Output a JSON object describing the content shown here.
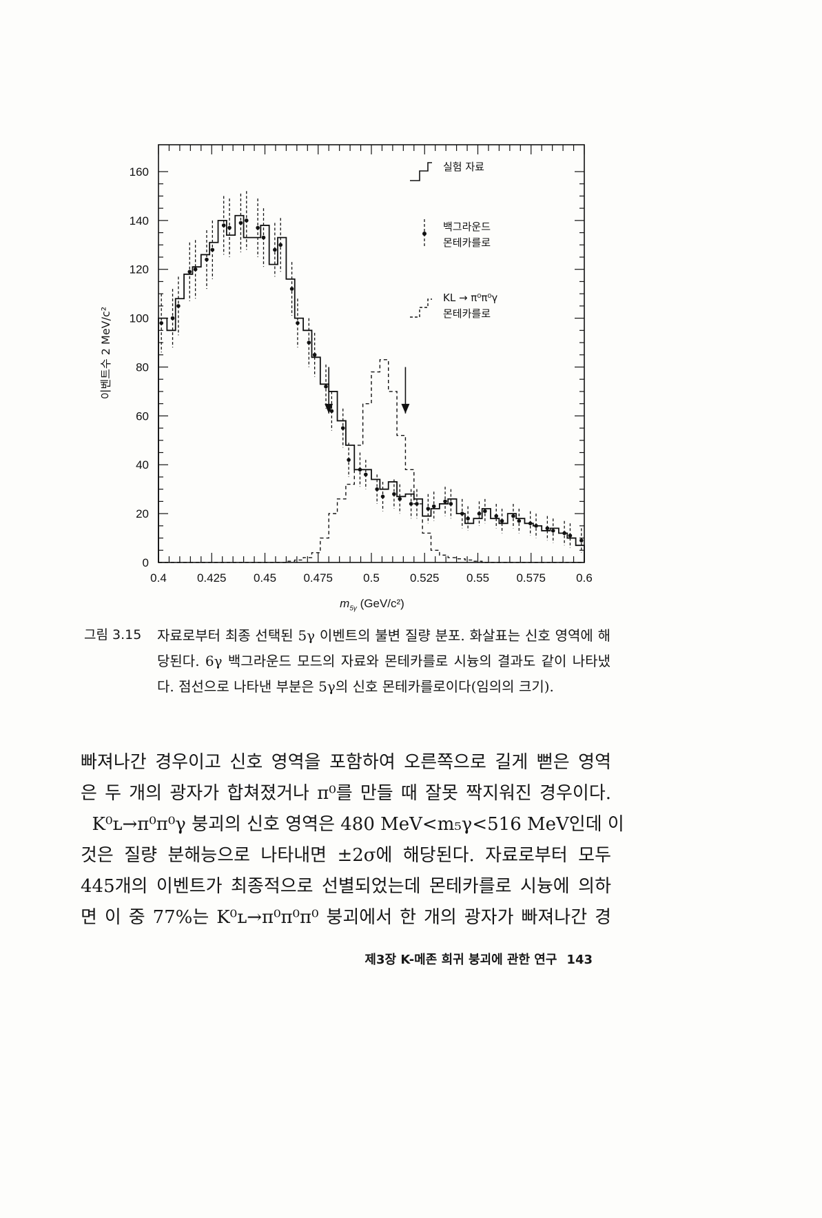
{
  "chart_data": {
    "type": "bar",
    "title": "",
    "xlabel": "m_5γ (GeV/c²)",
    "xlabel_main": "m",
    "xlabel_sub": "5γ",
    "xlabel_unit": " (GeV/c²)",
    "ylabel": "이벤트수 2 MeV/c²",
    "xlim": [
      0.4,
      0.6
    ],
    "ylim": [
      0,
      170
    ],
    "xticks": [
      "0.4",
      "0.425",
      "0.45",
      "0.475",
      "0.5",
      "0.525",
      "0.55",
      "0.575",
      "0.6"
    ],
    "yticks": [
      "0",
      "20",
      "40",
      "60",
      "80",
      "100",
      "120",
      "140",
      "160"
    ],
    "x": [
      0.4,
      0.404,
      0.408,
      0.412,
      0.416,
      0.42,
      0.424,
      0.428,
      0.432,
      0.436,
      0.44,
      0.444,
      0.448,
      0.452,
      0.456,
      0.46,
      0.464,
      0.468,
      0.472,
      0.476,
      0.48,
      0.484,
      0.488,
      0.492,
      0.496,
      0.5,
      0.504,
      0.508,
      0.512,
      0.516,
      0.52,
      0.524,
      0.528,
      0.532,
      0.536,
      0.54,
      0.544,
      0.548,
      0.552,
      0.556,
      0.56,
      0.564,
      0.568,
      0.572,
      0.576,
      0.58,
      0.584,
      0.588,
      0.592,
      0.596
    ],
    "series": [
      {
        "name": "실험 자료",
        "style": "histogram",
        "values": [
          100,
          95,
          108,
          118,
          121,
          126,
          131,
          140,
          134,
          142,
          133,
          133,
          138,
          122,
          133,
          116,
          100,
          95,
          84,
          73,
          70,
          58,
          48,
          38,
          38,
          34,
          30,
          33,
          27,
          28,
          26,
          19,
          22,
          24,
          26,
          20,
          16,
          18,
          22,
          18,
          16,
          20,
          18,
          16,
          15,
          13,
          14,
          12,
          10,
          7
        ]
      },
      {
        "name": "백그라운드 몬테카를로",
        "style": "points-with-dashed-errors",
        "values": [
          98,
          100,
          105,
          119,
          120,
          124,
          128,
          138,
          137,
          139,
          140,
          137,
          133,
          128,
          130,
          112,
          98,
          90,
          85,
          72,
          62,
          55,
          42,
          38,
          36,
          30,
          27,
          28,
          26,
          24,
          24,
          22,
          23,
          25,
          24,
          20,
          18,
          20,
          21,
          19,
          17,
          19,
          17,
          16,
          15,
          14,
          13,
          12,
          11,
          9
        ],
        "errors": [
          12,
          12,
          12,
          12,
          12,
          12,
          12,
          12,
          12,
          12,
          12,
          12,
          12,
          11,
          11,
          11,
          10,
          10,
          9,
          9,
          8,
          8,
          7,
          7,
          6,
          6,
          6,
          6,
          6,
          6,
          6,
          6,
          6,
          6,
          6,
          6,
          5,
          5,
          5,
          5,
          5,
          5,
          5,
          5,
          5,
          5,
          5,
          5,
          5,
          5
        ]
      },
      {
        "name": "KL → π⁰π⁰γ 몬테카를로",
        "style": "dashed-histogram",
        "values": [
          0,
          0,
          0,
          0,
          0,
          0,
          0,
          0,
          0,
          0,
          0,
          0,
          0,
          0,
          0,
          0.5,
          1,
          2,
          4,
          10,
          20,
          26,
          32,
          48,
          65,
          78,
          83,
          70,
          52,
          38,
          24,
          12,
          5,
          3,
          2,
          1.5,
          1,
          0.5,
          0,
          0,
          0,
          0,
          0,
          0,
          0,
          0,
          0,
          0,
          0,
          0
        ]
      }
    ],
    "annotations": [
      {
        "type": "arrow-down",
        "x": 0.48,
        "from": 80,
        "to": 61
      },
      {
        "type": "arrow-down",
        "x": 0.516,
        "from": 80,
        "to": 61
      }
    ],
    "legend": {
      "placement": "top-right",
      "entries": [
        "실험 자료",
        "백그라운드",
        "몬테카를로",
        "KL → π⁰π⁰γ",
        "몬테카를로"
      ]
    }
  },
  "caption": {
    "number": "그림 3.15",
    "text": "자료로부터 최종 선택된 5γ 이벤트의 불변 질량 분포. 화살표는 신호 영역에 해당된다. 6γ 백그라운드 모드의 자료와 몬테카를로 시늉의 결과도 같이 나타냈다. 점선으로 나타낸 부분은 5γ의 신호 몬테카를로이다(임의의 크기)."
  },
  "body": {
    "lines": [
      "빠져나간 경우이고 신호 영역을 포함하여 오른쪽으로 길게 뻗은 영역",
      "은 두 개의 광자가 합쳐졌거나 π⁰를 만들 때 잘못 짝지워진 경우이다.",
      "  K⁰ʟ→π⁰π⁰γ 붕괴의 신호 영역은 480 MeV<m₅γ<516 MeV인데 이",
      "것은 질량 분해능으로 나타내면 ±2σ에 해당된다. 자료로부터 모두",
      "445개의 이벤트가 최종적으로 선별되었는데 몬테카를로 시늉에 의하",
      "면 이 중 77%는 K⁰ʟ→π⁰π⁰π⁰ 붕괴에서 한 개의 광자가 빠져나간 경"
    ]
  },
  "footer": {
    "chapter": "제3장 K-메존 희귀 붕괴에 관한 연구",
    "page": "143"
  }
}
